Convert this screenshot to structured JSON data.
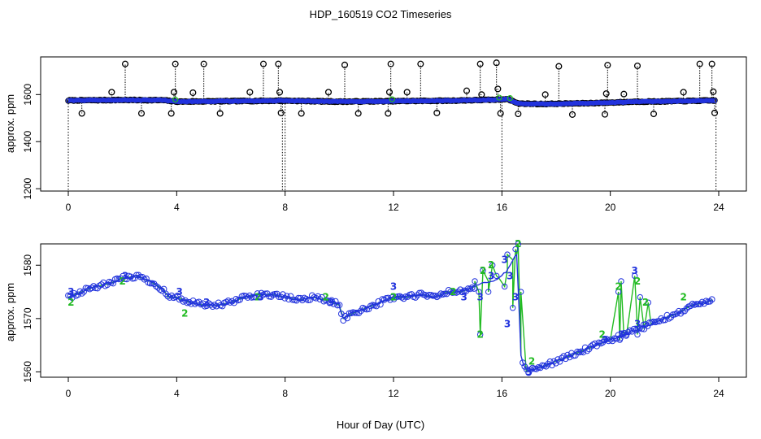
{
  "figure": {
    "title": "HDP_160519  CO2 Timeseries",
    "xlabel": "Hour of Day (UTC)"
  },
  "chart_data": [
    {
      "type": "scatter",
      "panel": "top",
      "title": "HDP_160519  CO2 Timeseries",
      "xlabel": "",
      "ylabel": "approx. ppm",
      "xlim": [
        0,
        24
      ],
      "ylim": [
        1190,
        1760
      ],
      "xticks": [
        "0",
        "4",
        "8",
        "12",
        "16",
        "20",
        "24"
      ],
      "yticks": [
        "1200",
        "1400",
        "1600"
      ],
      "grid": false,
      "legend": "none",
      "baseline": [
        [
          0.0,
          1575
        ],
        [
          2.0,
          1577
        ],
        [
          3.5,
          1576
        ],
        [
          4.0,
          1570
        ],
        [
          6.0,
          1572
        ],
        [
          8.0,
          1574
        ],
        [
          10.0,
          1570
        ],
        [
          12.0,
          1572
        ],
        [
          14.0,
          1574
        ],
        [
          15.8,
          1578
        ],
        [
          16.2,
          1582
        ],
        [
          16.6,
          1562
        ],
        [
          17.5,
          1560
        ],
        [
          19.0,
          1563
        ],
        [
          20.0,
          1566
        ],
        [
          21.0,
          1570
        ],
        [
          22.0,
          1571
        ],
        [
          23.0,
          1573
        ],
        [
          23.8,
          1575
        ]
      ],
      "outliers": [
        [
          0.5,
          1520
        ],
        [
          1.6,
          1610
        ],
        [
          2.1,
          1730
        ],
        [
          2.7,
          1520
        ],
        [
          3.8,
          1520
        ],
        [
          3.9,
          1610
        ],
        [
          3.95,
          1730
        ],
        [
          4.6,
          1608
        ],
        [
          5.0,
          1730
        ],
        [
          5.6,
          1520
        ],
        [
          6.7,
          1610
        ],
        [
          7.2,
          1730
        ],
        [
          7.75,
          1730
        ],
        [
          7.8,
          1610
        ],
        [
          7.85,
          1522
        ],
        [
          8.6,
          1520
        ],
        [
          9.6,
          1610
        ],
        [
          10.2,
          1726
        ],
        [
          10.7,
          1520
        ],
        [
          11.8,
          1520
        ],
        [
          11.85,
          1610
        ],
        [
          11.9,
          1730
        ],
        [
          12.5,
          1610
        ],
        [
          13.0,
          1730
        ],
        [
          13.6,
          1522
        ],
        [
          14.7,
          1616
        ],
        [
          15.2,
          1730
        ],
        [
          15.25,
          1600
        ],
        [
          15.8,
          1735
        ],
        [
          15.85,
          1624
        ],
        [
          15.95,
          1520
        ],
        [
          16.6,
          1518
        ],
        [
          17.6,
          1600
        ],
        [
          18.1,
          1720
        ],
        [
          18.6,
          1515
        ],
        [
          19.8,
          1516
        ],
        [
          19.85,
          1604
        ],
        [
          19.9,
          1725
        ],
        [
          20.5,
          1602
        ],
        [
          21.0,
          1722
        ],
        [
          21.6,
          1518
        ],
        [
          22.7,
          1610
        ],
        [
          23.3,
          1730
        ],
        [
          23.75,
          1730
        ],
        [
          23.8,
          1612
        ],
        [
          23.85,
          1522
        ]
      ],
      "drops": [
        [
          0.0,
          1190
        ],
        [
          7.9,
          1190
        ],
        [
          8.0,
          1190
        ],
        [
          16.0,
          1190
        ],
        [
          23.9,
          1190
        ]
      ]
    },
    {
      "type": "line",
      "panel": "bottom",
      "title": "",
      "xlabel": "Hour of Day (UTC)",
      "ylabel": "approx. ppm",
      "xlim": [
        0,
        24
      ],
      "ylim": [
        1559,
        1584
      ],
      "xticks": [
        "0",
        "4",
        "8",
        "12",
        "16",
        "20",
        "24"
      ],
      "yticks": [
        "1560",
        "1570",
        "1580"
      ],
      "grid": false,
      "legend": "none",
      "point_labels": [
        "2",
        "3"
      ],
      "smooth": [
        [
          0.0,
          1574
        ],
        [
          0.5,
          1575
        ],
        [
          1.0,
          1576
        ],
        [
          1.5,
          1576.5
        ],
        [
          2.0,
          1577.5
        ],
        [
          2.5,
          1578
        ],
        [
          3.0,
          1577
        ],
        [
          3.5,
          1575.5
        ],
        [
          3.7,
          1574
        ],
        [
          3.9,
          1574
        ],
        [
          4.0,
          1574
        ],
        [
          4.5,
          1573
        ],
        [
          5.0,
          1572.5
        ],
        [
          5.5,
          1572.5
        ],
        [
          6.0,
          1573
        ],
        [
          6.5,
          1574
        ],
        [
          7.0,
          1574.5
        ],
        [
          7.5,
          1574.5
        ],
        [
          8.0,
          1574
        ],
        [
          8.5,
          1573.5
        ],
        [
          9.0,
          1574
        ],
        [
          9.5,
          1573.5
        ],
        [
          10.0,
          1572.5
        ],
        [
          10.15,
          1570
        ],
        [
          10.5,
          1571
        ],
        [
          11.0,
          1572
        ],
        [
          11.5,
          1573
        ],
        [
          12.0,
          1574
        ],
        [
          12.5,
          1574
        ],
        [
          13.0,
          1574.5
        ],
        [
          13.5,
          1574
        ],
        [
          14.0,
          1575
        ],
        [
          14.5,
          1575
        ],
        [
          15.0,
          1576
        ],
        [
          15.5,
          1577
        ],
        [
          15.9,
          1577.5
        ],
        [
          16.2,
          1579
        ],
        [
          16.4,
          1581
        ],
        [
          16.55,
          1582
        ],
        [
          16.7,
          1563
        ],
        [
          16.9,
          1560
        ],
        [
          17.5,
          1561
        ],
        [
          18.0,
          1562
        ],
        [
          18.5,
          1563
        ],
        [
          19.0,
          1564
        ],
        [
          19.5,
          1565
        ],
        [
          20.0,
          1566
        ],
        [
          20.5,
          1567
        ],
        [
          21.0,
          1568
        ],
        [
          21.5,
          1569
        ],
        [
          22.0,
          1570
        ],
        [
          22.5,
          1571
        ],
        [
          23.0,
          1572.5
        ],
        [
          23.5,
          1573
        ],
        [
          23.75,
          1573.5
        ]
      ],
      "spikes": [
        [
          15.0,
          1577
        ],
        [
          15.15,
          1575
        ],
        [
          15.2,
          1567
        ],
        [
          15.3,
          1579
        ],
        [
          15.5,
          1575
        ],
        [
          15.65,
          1580
        ],
        [
          15.8,
          1578
        ],
        [
          16.1,
          1576
        ],
        [
          16.2,
          1582
        ],
        [
          16.4,
          1572
        ],
        [
          16.5,
          1583
        ],
        [
          16.6,
          1584
        ],
        [
          16.7,
          1575
        ],
        [
          20.3,
          1575
        ],
        [
          20.35,
          1566
        ],
        [
          20.4,
          1577
        ],
        [
          20.6,
          1567
        ],
        [
          20.9,
          1578
        ],
        [
          21.0,
          1567
        ],
        [
          21.1,
          1574
        ],
        [
          21.25,
          1568
        ],
        [
          21.4,
          1573
        ]
      ],
      "green_labels": [
        [
          0.1,
          1573
        ],
        [
          2.0,
          1577
        ],
        [
          4.3,
          1571
        ],
        [
          7.0,
          1574
        ],
        [
          9.5,
          1574
        ],
        [
          12.0,
          1574
        ],
        [
          14.2,
          1575
        ],
        [
          15.2,
          1567
        ],
        [
          15.3,
          1579
        ],
        [
          15.6,
          1580
        ],
        [
          16.6,
          1584
        ],
        [
          17.1,
          1562
        ],
        [
          19.7,
          1567
        ],
        [
          20.3,
          1576
        ],
        [
          21.0,
          1577
        ],
        [
          21.3,
          1573
        ],
        [
          22.7,
          1574
        ]
      ],
      "blue_labels": [
        [
          0.1,
          1575
        ],
        [
          2.1,
          1578
        ],
        [
          4.1,
          1575
        ],
        [
          5.1,
          1573
        ],
        [
          7.1,
          1574
        ],
        [
          9.7,
          1573
        ],
        [
          12.0,
          1576
        ],
        [
          14.6,
          1574
        ],
        [
          15.2,
          1574
        ],
        [
          15.6,
          1578
        ],
        [
          16.1,
          1581
        ],
        [
          16.3,
          1578
        ],
        [
          16.2,
          1569
        ],
        [
          16.5,
          1574
        ],
        [
          17.0,
          1560
        ],
        [
          19.8,
          1566
        ],
        [
          20.4,
          1567
        ],
        [
          20.9,
          1579
        ],
        [
          21.0,
          1569
        ]
      ]
    }
  ]
}
